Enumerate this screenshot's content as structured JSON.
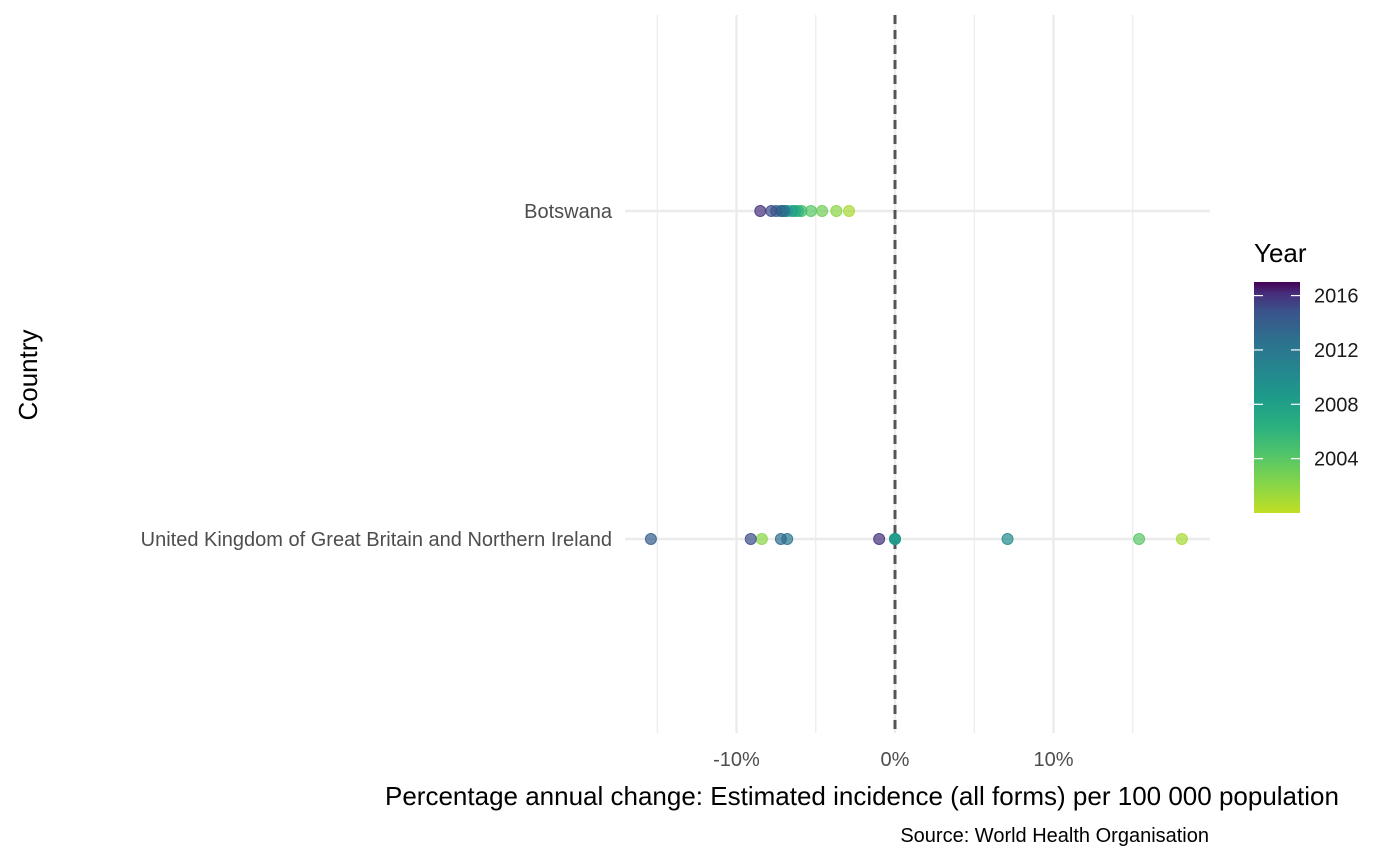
{
  "chart_data": {
    "type": "scatter",
    "xlabel": "Percentage annual change: Estimated incidence (all forms) per 100 000 population",
    "ylabel": "Country",
    "caption": "Source: World Health Organisation",
    "x_ticks": [
      -10,
      0,
      10
    ],
    "x_tick_labels": [
      "-10%",
      "0%",
      "10%"
    ],
    "x_unit": "%",
    "xlim": [
      -17,
      20
    ],
    "categories": [
      "Botswana",
      "United Kingdom of Great Britain and Northern Ireland"
    ],
    "reference_line": {
      "x": 0,
      "style": "dashed"
    },
    "grid": true,
    "legend": {
      "title": "Year",
      "type": "colorbar",
      "palette": "viridis",
      "range": [
        2000,
        2017
      ],
      "ticks": [
        2004,
        2008,
        2012,
        2016
      ],
      "position": "right"
    },
    "colors": {
      "low_year": "#c2df23",
      "high_year": "#440154",
      "reference_line": "#555555",
      "grid": "#ebebeb"
    },
    "series": [
      {
        "category": "Botswana",
        "points": [
          {
            "x": -2.9,
            "year": 2001
          },
          {
            "x": -3.7,
            "year": 2002
          },
          {
            "x": -4.6,
            "year": 2003
          },
          {
            "x": -5.3,
            "year": 2004
          },
          {
            "x": -5.9,
            "year": 2005
          },
          {
            "x": -6.1,
            "year": 2006
          },
          {
            "x": -6.3,
            "year": 2007
          },
          {
            "x": -6.5,
            "year": 2008
          },
          {
            "x": -6.8,
            "year": 2009
          },
          {
            "x": -7.0,
            "year": 2010
          },
          {
            "x": -7.1,
            "year": 2011
          },
          {
            "x": -7.0,
            "year": 2012
          },
          {
            "x": -7.2,
            "year": 2013
          },
          {
            "x": -7.5,
            "year": 2014
          },
          {
            "x": -7.8,
            "year": 2015
          },
          {
            "x": -8.5,
            "year": 2016
          }
        ]
      },
      {
        "category": "United Kingdom of Great Britain and Northern Ireland",
        "points": [
          {
            "x": 18.1,
            "year": 2001
          },
          {
            "x": -8.4,
            "year": 2002
          },
          {
            "x": 15.4,
            "year": 2004
          },
          {
            "x": 0.0,
            "year": 2006
          },
          {
            "x": 0.0,
            "year": 2008
          },
          {
            "x": 0.0,
            "year": 2009
          },
          {
            "x": 7.1,
            "year": 2010
          },
          {
            "x": -6.8,
            "year": 2012
          },
          {
            "x": -7.2,
            "year": 2013
          },
          {
            "x": -15.4,
            "year": 2014
          },
          {
            "x": -9.1,
            "year": 2015
          },
          {
            "x": -1.0,
            "year": 2016
          }
        ]
      }
    ]
  }
}
